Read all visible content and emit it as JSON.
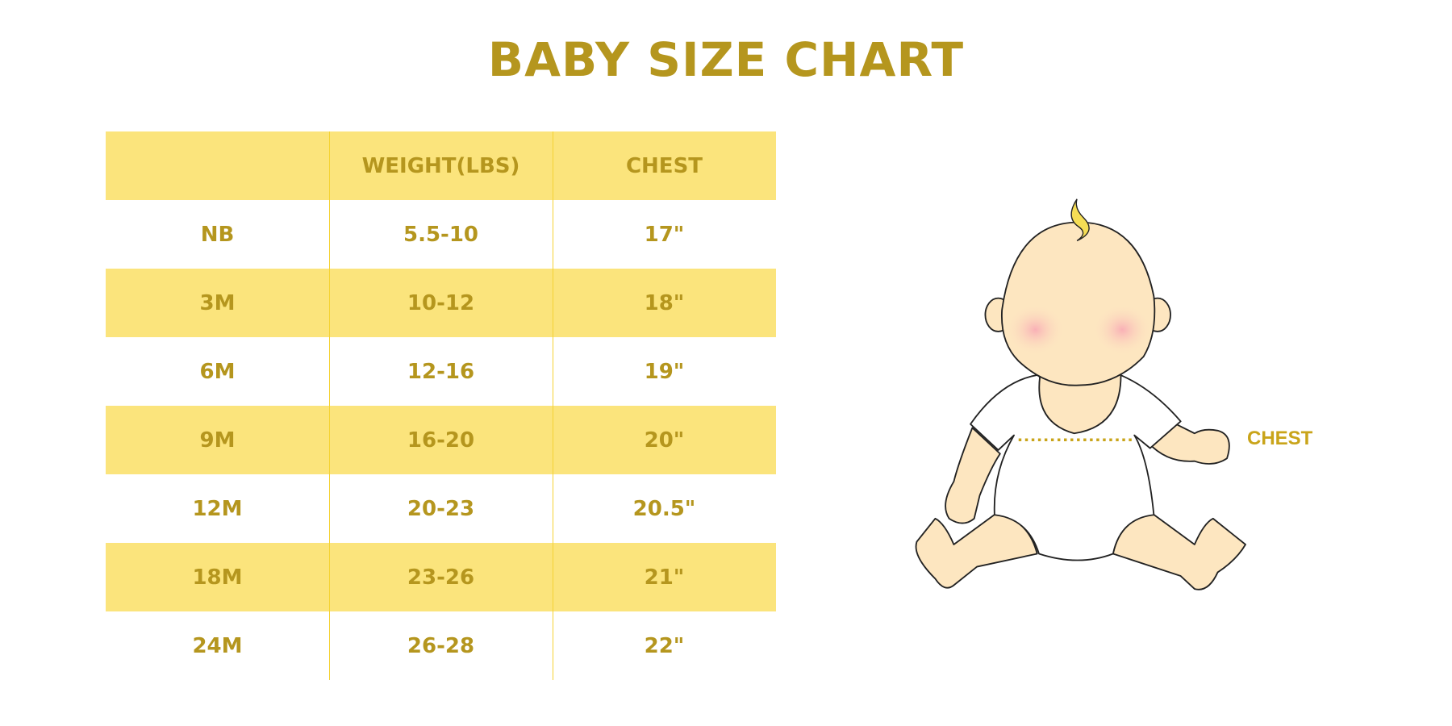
{
  "title": "BABY SIZE CHART",
  "table": {
    "headers": [
      "",
      "WEIGHT(LBS)",
      "CHEST"
    ],
    "rows": [
      [
        "NB",
        "5.5-10",
        "17\""
      ],
      [
        "3M",
        "10-12",
        "18\""
      ],
      [
        "6M",
        "12-16",
        "19\""
      ],
      [
        "9M",
        "16-20",
        "20\""
      ],
      [
        "12M",
        "20-23",
        "20.5\""
      ],
      [
        "18M",
        "23-26",
        "21\""
      ],
      [
        "24M",
        "26-28",
        "22\""
      ]
    ]
  },
  "illustration": {
    "chest_label": "CHEST"
  },
  "colors": {
    "text": "#b5961e",
    "band": "#fbe47c",
    "divider": "#f5d233",
    "skin": "#fde6c0",
    "cheek": "#f9b7bb"
  }
}
